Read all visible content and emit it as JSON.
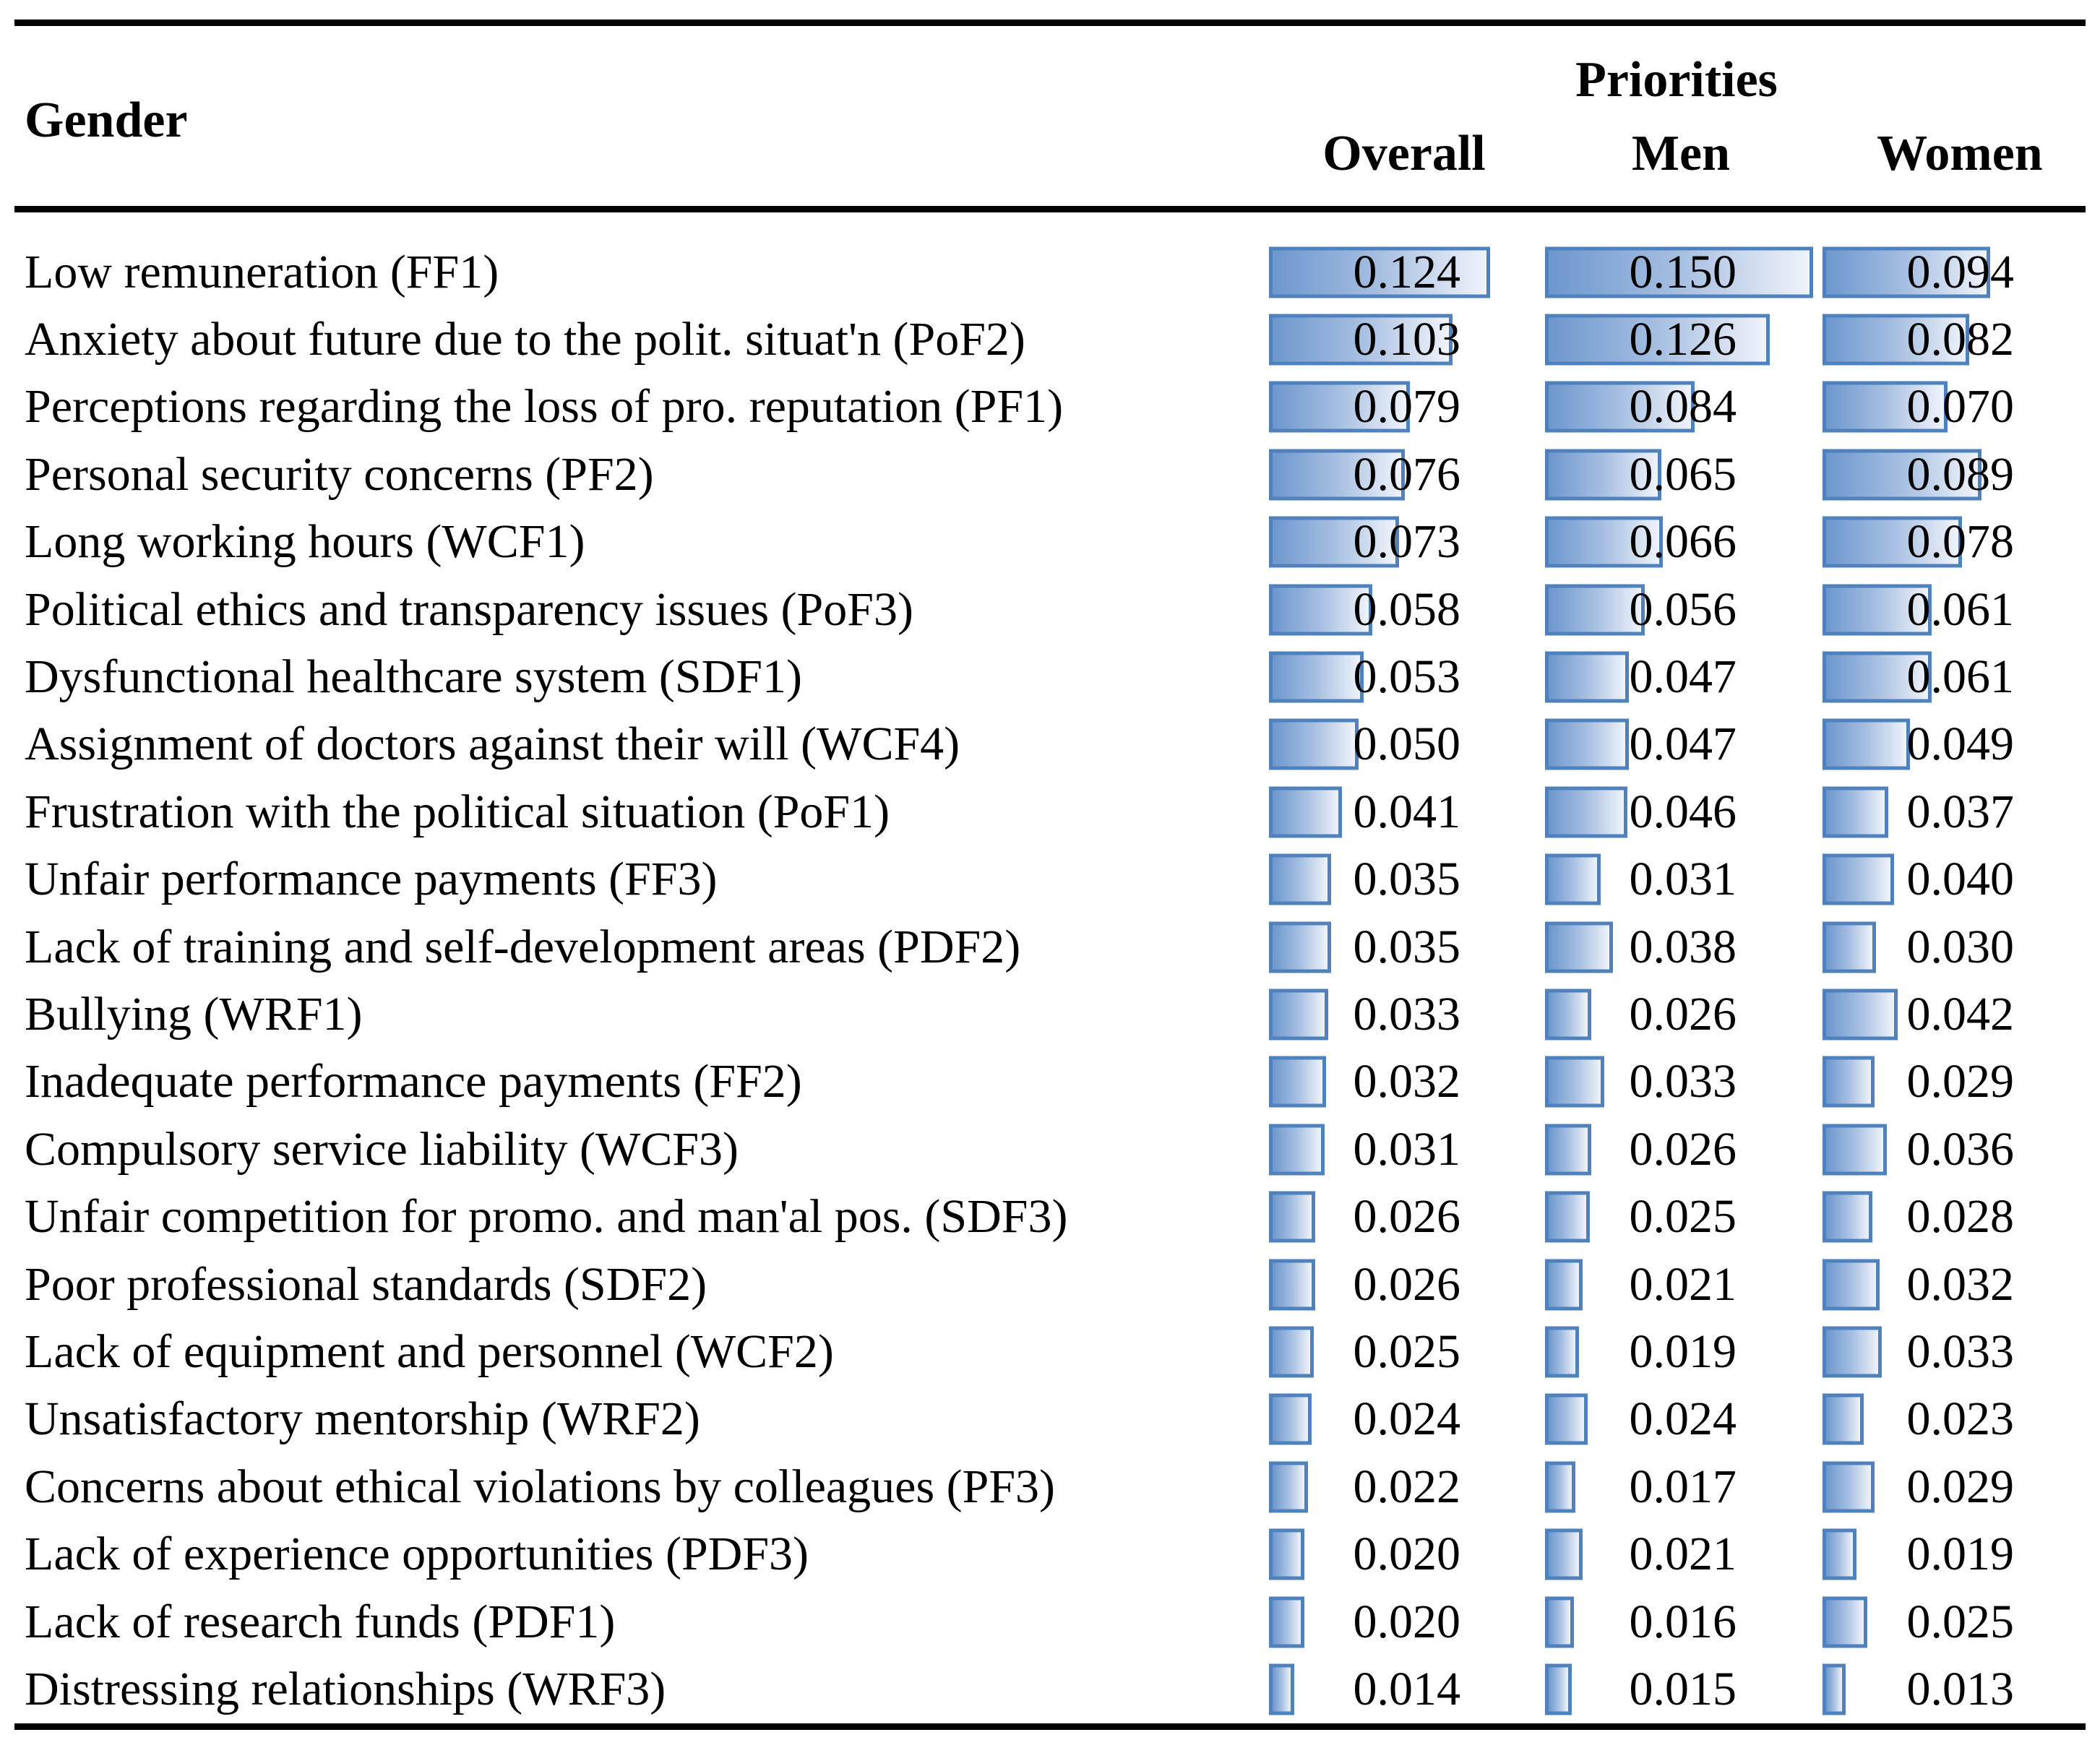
{
  "figure": {
    "header": {
      "row_group_label": "Gender",
      "span_label": "Priorities",
      "columns": [
        "Overall",
        "Men",
        "Women"
      ]
    },
    "colors": {
      "bar_border": "#4F81BD",
      "bar_fill_start": "#6D97CE",
      "bar_fill_end": "#EFF3FB",
      "rule": "#000000",
      "text": "#000000",
      "background": "#FFFFFF"
    }
  },
  "chart_data": {
    "type": "bar",
    "orientation": "horizontal",
    "value_format": "0.000",
    "xlim": [
      0,
      0.155
    ],
    "legend_position": "column-headers",
    "grid": false,
    "categories": [
      "Low remuneration (FF1)",
      "Anxiety about future due to the polit. situat'n (PoF2)",
      "Perceptions regarding the loss of pro. reputation (PF1)",
      "Personal security concerns (PF2)",
      "Long working hours (WCF1)",
      "Political ethics and transparency issues (PoF3)",
      "Dysfunctional healthcare system (SDF1)",
      "Assignment of doctors against their will (WCF4)",
      "Frustration with the political situation (PoF1)",
      "Unfair performance payments (FF3)",
      "Lack of training and self-development areas (PDF2)",
      "Bullying (WRF1)",
      "Inadequate performance payments (FF2)",
      "Compulsory service liability (WCF3)",
      "Unfair competition for promo. and man'al pos. (SDF3)",
      "Poor professional standards (SDF2)",
      "Lack of equipment and personnel (WCF2)",
      "Unsatisfactory mentorship (WRF2)",
      "Concerns about ethical violations by colleagues (PF3)",
      "Lack of experience opportunities (PDF3)",
      "Lack of research funds (PDF1)",
      "Distressing relationships (WRF3)"
    ],
    "series": [
      {
        "name": "Overall",
        "values": [
          0.124,
          0.103,
          0.079,
          0.076,
          0.073,
          0.058,
          0.053,
          0.05,
          0.041,
          0.035,
          0.035,
          0.033,
          0.032,
          0.031,
          0.026,
          0.026,
          0.025,
          0.024,
          0.022,
          0.02,
          0.02,
          0.014
        ]
      },
      {
        "name": "Men",
        "values": [
          0.15,
          0.126,
          0.084,
          0.065,
          0.066,
          0.056,
          0.047,
          0.047,
          0.046,
          0.031,
          0.038,
          0.026,
          0.033,
          0.026,
          0.025,
          0.021,
          0.019,
          0.024,
          0.017,
          0.021,
          0.016,
          0.015
        ]
      },
      {
        "name": "Women",
        "values": [
          0.094,
          0.082,
          0.07,
          0.089,
          0.078,
          0.061,
          0.061,
          0.049,
          0.037,
          0.04,
          0.03,
          0.042,
          0.029,
          0.036,
          0.028,
          0.032,
          0.033,
          0.023,
          0.029,
          0.019,
          0.025,
          0.013
        ]
      }
    ]
  }
}
